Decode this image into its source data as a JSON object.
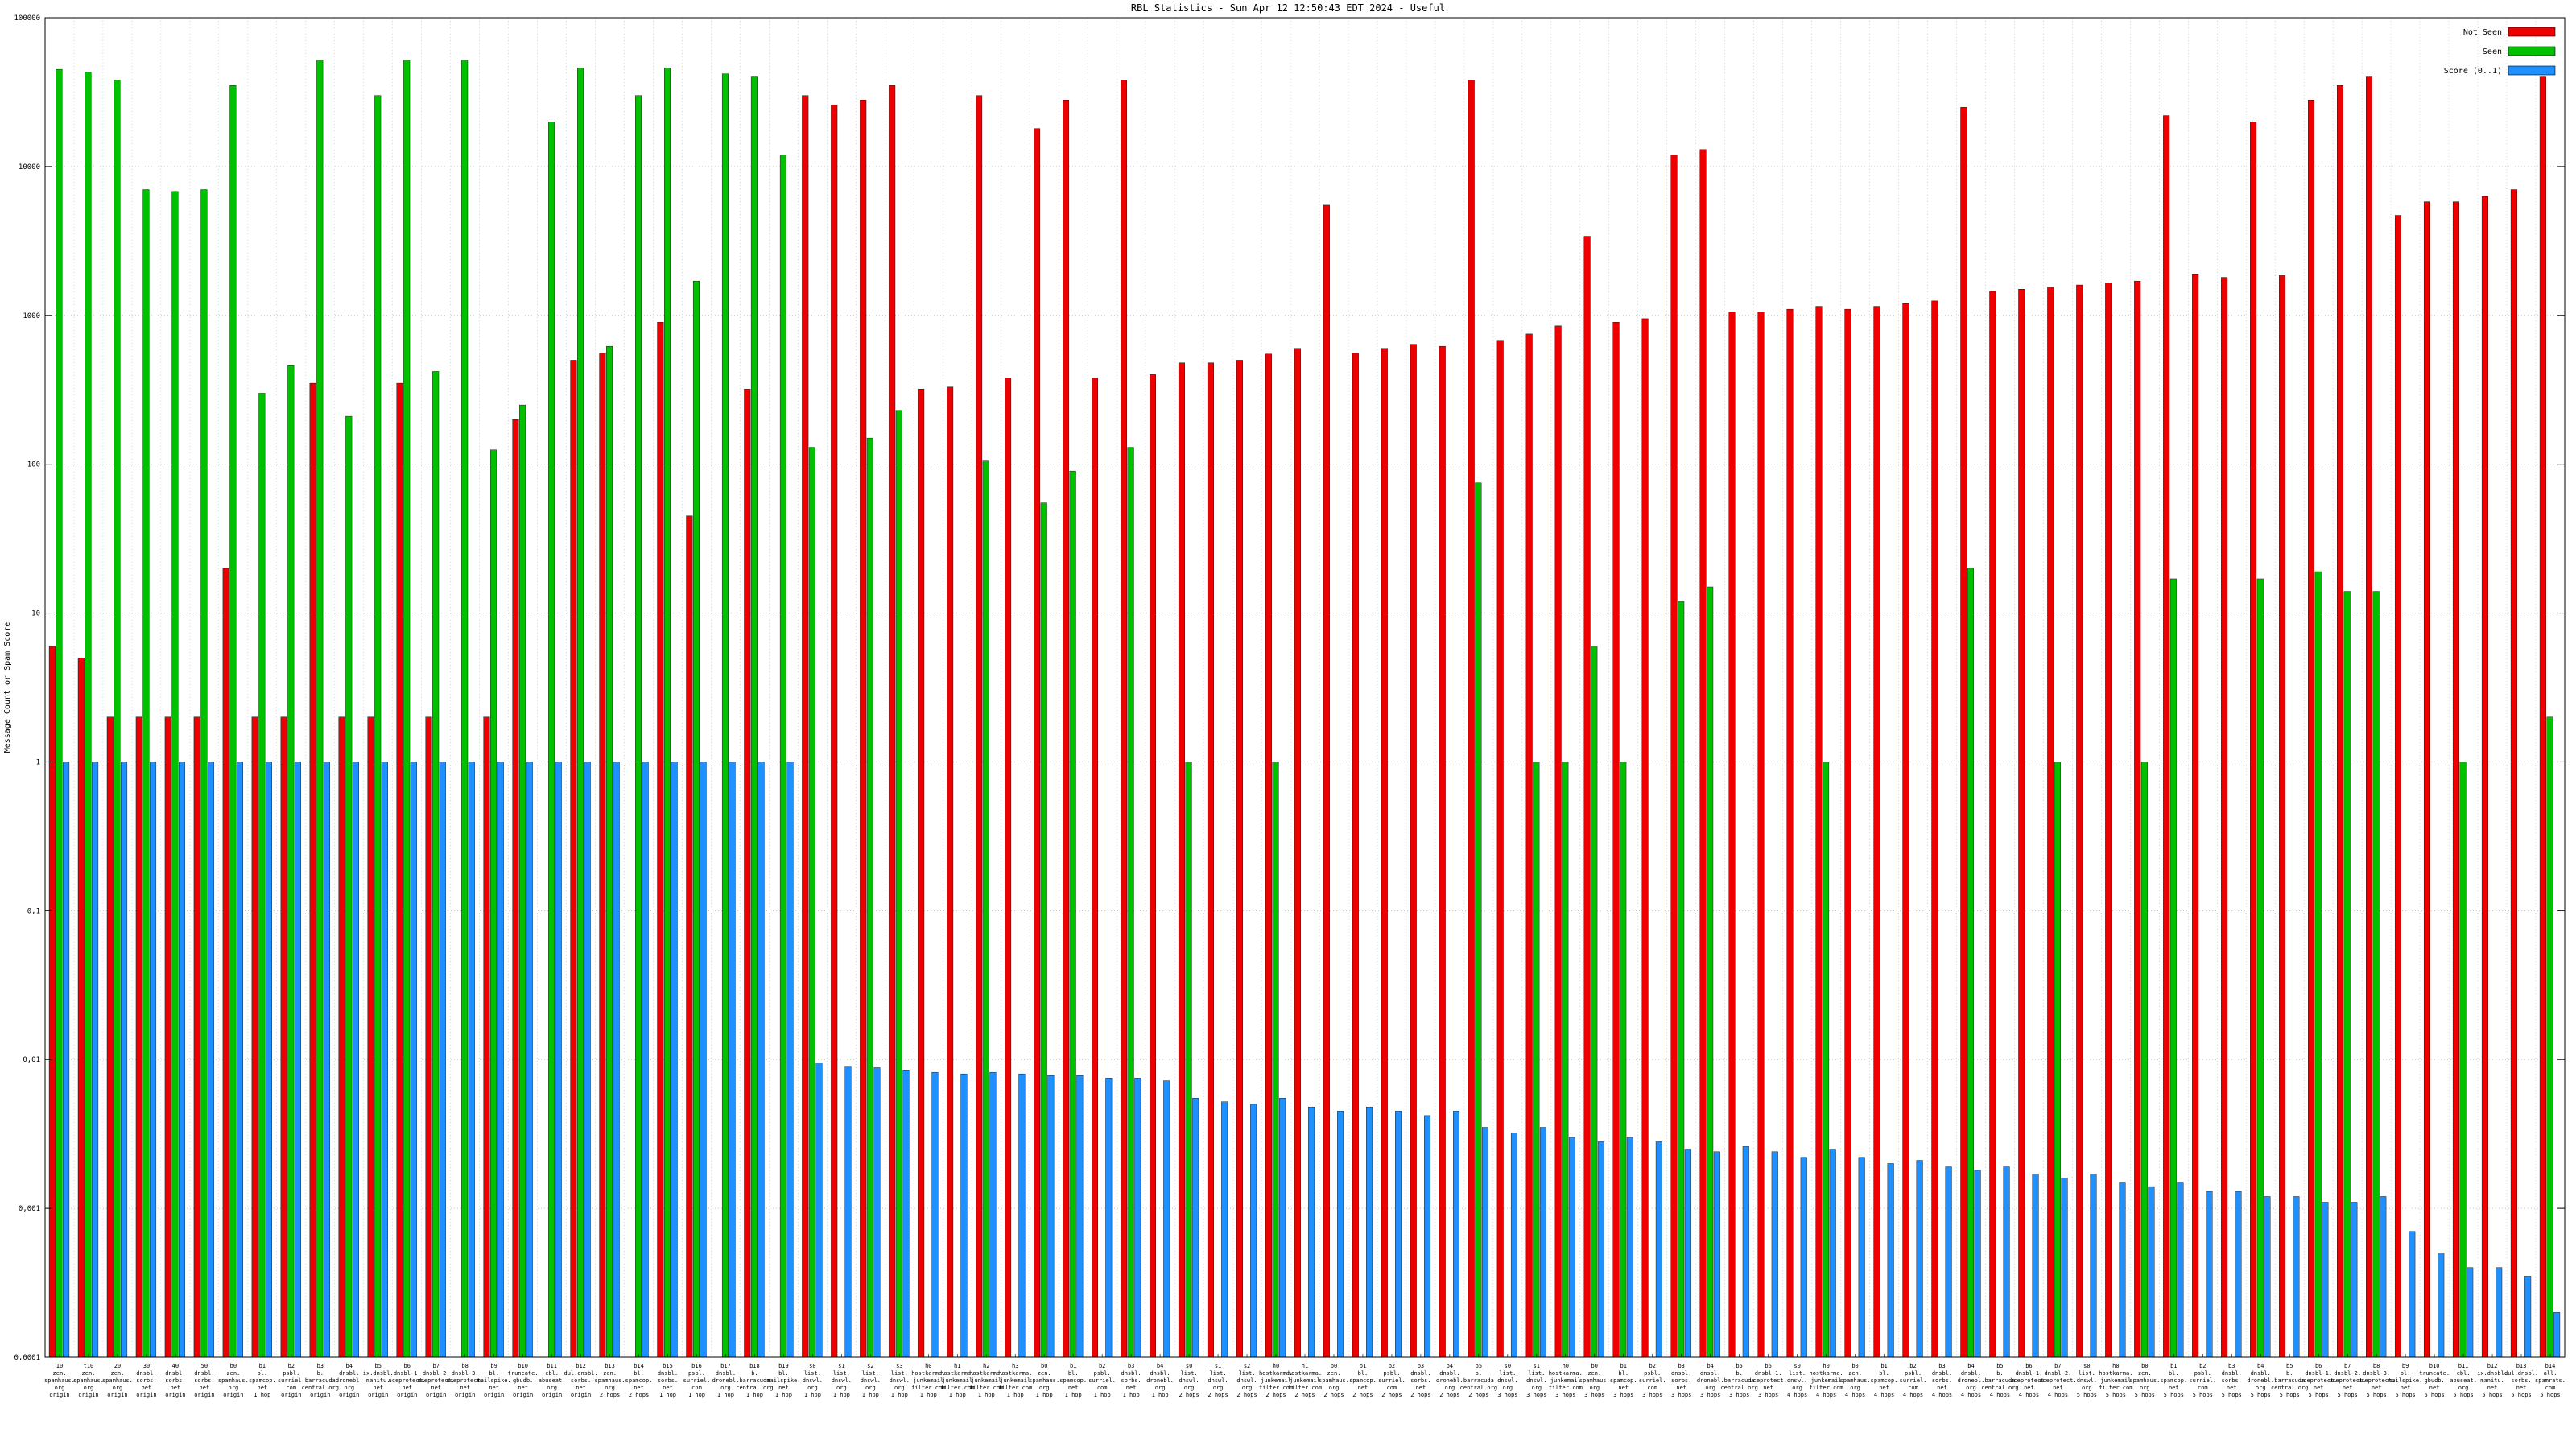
{
  "title": "RBL Statistics - Sun Apr 12 12:50:43 EDT 2024 - Useful",
  "ylabel": "Message Count or Spam Score",
  "yticks": [
    "100000",
    "10000",
    "1000",
    "100",
    "10",
    "1",
    "0,1",
    "0,01",
    "0,001",
    "0,0001"
  ],
  "colors": {
    "not_seen": "#ee0000",
    "seen": "#00c000",
    "score": "#1e90ff",
    "grid": "#a0a0a0",
    "frame": "#000000"
  },
  "legend": [
    {
      "label": "Not Seen",
      "color": "#ee0000"
    },
    {
      "label": "Seen",
      "color": "#00c000"
    },
    {
      "label": "Score (0..1)",
      "color": "#1e90ff"
    }
  ],
  "chart_data": {
    "type": "bar",
    "yscale": "log",
    "ylim": [
      0.0001,
      100000
    ],
    "grid": true,
    "legend_position": "top-right",
    "series_names": [
      "Not Seen",
      "Seen",
      "Score (0..1)"
    ],
    "groups": [
      {
        "label": [
          "10",
          "zen.",
          "spamhaus.",
          "org",
          "origin"
        ],
        "not_seen": 6,
        "seen": 45000,
        "score": 1
      },
      {
        "label": [
          "t10",
          "zen.",
          "spamhaus.",
          "org",
          "origin"
        ],
        "not_seen": 5,
        "seen": 43000,
        "score": 1
      },
      {
        "label": [
          "20",
          "zen.",
          "spamhaus.",
          "org",
          "origin"
        ],
        "not_seen": 2,
        "seen": 38000,
        "score": 1
      },
      {
        "label": [
          "30",
          "dnsbl.",
          "sorbs.",
          "net",
          "origin"
        ],
        "not_seen": 2,
        "seen": 7000,
        "score": 1
      },
      {
        "label": [
          "40",
          "dnsbl.",
          "sorbs.",
          "net",
          "origin"
        ],
        "not_seen": 2,
        "seen": 6800,
        "score": 1
      },
      {
        "label": [
          "50",
          "dnsbl.",
          "sorbs.",
          "net",
          "origin"
        ],
        "not_seen": 2,
        "seen": 7000,
        "score": 1
      },
      {
        "label": [
          "b0",
          "zen.",
          "spamhaus.",
          "org",
          "origin"
        ],
        "not_seen": 20,
        "seen": 35000,
        "score": 1
      },
      {
        "label": [
          "b1",
          "bl.",
          "spamcop.",
          "net",
          "1 hop"
        ],
        "not_seen": 2,
        "seen": 300,
        "score": 1
      },
      {
        "label": [
          "b2",
          "psbl.",
          "surriel.",
          "com",
          "origin"
        ],
        "not_seen": 2,
        "seen": 460,
        "score": 1
      },
      {
        "label": [
          "b3",
          "b.",
          "barracuda",
          "central.org",
          "origin"
        ],
        "not_seen": 350,
        "seen": 52000,
        "score": 1
      },
      {
        "label": [
          "b4",
          "dnsbl.",
          "dronebl.",
          "org",
          "origin"
        ],
        "not_seen": 2,
        "seen": 210,
        "score": 1
      },
      {
        "label": [
          "b5",
          "ix.dnsbl.",
          "manitu.",
          "net",
          "origin"
        ],
        "not_seen": 2,
        "seen": 30000,
        "score": 1
      },
      {
        "label": [
          "b6",
          "dnsbl-1.",
          "uceprotect.",
          "net",
          "origin"
        ],
        "not_seen": 350,
        "seen": 52000,
        "score": 1
      },
      {
        "label": [
          "b7",
          "dnsbl-2.",
          "uceprotect.",
          "net",
          "origin"
        ],
        "not_seen": 2,
        "seen": 420,
        "score": 1
      },
      {
        "label": [
          "b8",
          "dnsbl-3.",
          "uceprotect.",
          "net",
          "origin"
        ],
        "not_seen": 0,
        "seen": 52000,
        "score": 1
      },
      {
        "label": [
          "b9",
          "bl.",
          "mailspike.",
          "net",
          "origin"
        ],
        "not_seen": 2,
        "seen": 125,
        "score": 1
      },
      {
        "label": [
          "b10",
          "truncate.",
          "gbudb.",
          "net",
          "origin"
        ],
        "not_seen": 200,
        "seen": 250,
        "score": 1
      },
      {
        "label": [
          "b11",
          "cbl.",
          "abuseat.",
          "org",
          "origin"
        ],
        "not_seen": 0,
        "seen": 20000,
        "score": 1
      },
      {
        "label": [
          "b12",
          "dul.dnsbl.",
          "sorbs.",
          "net",
          "origin"
        ],
        "not_seen": 500,
        "seen": 46000,
        "score": 1
      },
      {
        "label": [
          "b13",
          "zen.",
          "spamhaus.",
          "org",
          "2 hops"
        ],
        "not_seen": 560,
        "seen": 620,
        "score": 1
      },
      {
        "label": [
          "b14",
          "bl.",
          "spamcop.",
          "net",
          "2 hops"
        ],
        "not_seen": 0,
        "seen": 30000,
        "score": 1
      },
      {
        "label": [
          "b15",
          "dnsbl.",
          "sorbs.",
          "net",
          "1 hop"
        ],
        "not_seen": 900,
        "seen": 46000,
        "score": 1
      },
      {
        "label": [
          "b16",
          "psbl.",
          "surriel.",
          "com",
          "1 hop"
        ],
        "not_seen": 45,
        "seen": 1700,
        "score": 1
      },
      {
        "label": [
          "b17",
          "dnsbl.",
          "dronebl.",
          "org",
          "1 hop"
        ],
        "not_seen": 0,
        "seen": 42000,
        "score": 1
      },
      {
        "label": [
          "b18",
          "b.",
          "barracuda",
          "central.org",
          "1 hop"
        ],
        "not_seen": 320,
        "seen": 40000,
        "score": 1
      },
      {
        "label": [
          "b19",
          "bl.",
          "mailspike.",
          "net",
          "1 hop"
        ],
        "not_seen": 0,
        "seen": 12000,
        "score": 1
      },
      {
        "label": [
          "s0",
          "list.",
          "dnswl.",
          "org",
          "1 hop"
        ],
        "not_seen": 30000,
        "seen": 130,
        "score": 0.0095
      },
      {
        "label": [
          "s1",
          "list.",
          "dnswl.",
          "org",
          "1 hop"
        ],
        "not_seen": 26000,
        "seen": 0,
        "score": 0.009
      },
      {
        "label": [
          "s2",
          "list.",
          "dnswl.",
          "org",
          "1 hop"
        ],
        "not_seen": 28000,
        "seen": 150,
        "score": 0.0088
      },
      {
        "label": [
          "s3",
          "list.",
          "dnswl.",
          "org",
          "1 hop"
        ],
        "not_seen": 35000,
        "seen": 230,
        "score": 0.0085
      },
      {
        "label": [
          "h0",
          "hostkarma.",
          "junkemail",
          "filter.com",
          "1 hop"
        ],
        "not_seen": 320,
        "seen": 0,
        "score": 0.0082
      },
      {
        "label": [
          "h1",
          "hostkarma.",
          "junkemail",
          "filter.com",
          "1 hop"
        ],
        "not_seen": 330,
        "seen": 0,
        "score": 0.008
      },
      {
        "label": [
          "h2",
          "hostkarma.",
          "junkemail",
          "filter.com",
          "1 hop"
        ],
        "not_seen": 30000,
        "seen": 105,
        "score": 0.0082
      },
      {
        "label": [
          "h3",
          "hostkarma.",
          "junkemail",
          "filter.com",
          "1 hop"
        ],
        "not_seen": 380,
        "seen": 0,
        "score": 0.008
      },
      {
        "label": [
          "b0",
          "zen.",
          "spamhaus.",
          "org",
          "1 hop"
        ],
        "not_seen": 18000,
        "seen": 55,
        "score": 0.0078
      },
      {
        "label": [
          "b1",
          "bl.",
          "spamcop.",
          "net",
          "1 hop"
        ],
        "not_seen": 28000,
        "seen": 90,
        "score": 0.0078
      },
      {
        "label": [
          "b2",
          "psbl.",
          "surriel.",
          "com",
          "1 hop"
        ],
        "not_seen": 380,
        "seen": 0,
        "score": 0.0075
      },
      {
        "label": [
          "b3",
          "dnsbl.",
          "sorbs.",
          "net",
          "1 hop"
        ],
        "not_seen": 38000,
        "seen": 130,
        "score": 0.0075
      },
      {
        "label": [
          "b4",
          "dnsbl.",
          "dronebl.",
          "org",
          "1 hop"
        ],
        "not_seen": 400,
        "seen": 0,
        "score": 0.0072
      },
      {
        "label": [
          "s0",
          "list.",
          "dnswl.",
          "org",
          "2 hops"
        ],
        "not_seen": 480,
        "seen": 1,
        "score": 0.0055
      },
      {
        "label": [
          "s1",
          "list.",
          "dnswl.",
          "org",
          "2 hops"
        ],
        "not_seen": 480,
        "seen": 0,
        "score": 0.0052
      },
      {
        "label": [
          "s2",
          "list.",
          "dnswl.",
          "org",
          "2 hops"
        ],
        "not_seen": 500,
        "seen": 0,
        "score": 0.005
      },
      {
        "label": [
          "h0",
          "hostkarma.",
          "junkemail",
          "filter.com",
          "2 hops"
        ],
        "not_seen": 550,
        "seen": 1,
        "score": 0.0055
      },
      {
        "label": [
          "h1",
          "hostkarma.",
          "junkemail",
          "filter.com",
          "2 hops"
        ],
        "not_seen": 600,
        "seen": 0,
        "score": 0.0048
      },
      {
        "label": [
          "b0",
          "zen.",
          "spamhaus.",
          "org",
          "2 hops"
        ],
        "not_seen": 5500,
        "seen": 0,
        "score": 0.0045
      },
      {
        "label": [
          "b1",
          "bl.",
          "spamcop.",
          "net",
          "2 hops"
        ],
        "not_seen": 560,
        "seen": 0,
        "score": 0.0048
      },
      {
        "label": [
          "b2",
          "psbl.",
          "surriel.",
          "com",
          "2 hops"
        ],
        "not_seen": 600,
        "seen": 0,
        "score": 0.0045
      },
      {
        "label": [
          "b3",
          "dnsbl.",
          "sorbs.",
          "net",
          "2 hops"
        ],
        "not_seen": 640,
        "seen": 0,
        "score": 0.0042
      },
      {
        "label": [
          "b4",
          "dnsbl.",
          "dronebl.",
          "org",
          "2 hops"
        ],
        "not_seen": 620,
        "seen": 0,
        "score": 0.0045
      },
      {
        "label": [
          "b5",
          "b.",
          "barracuda",
          "central.org",
          "2 hops"
        ],
        "not_seen": 38000,
        "seen": 75,
        "score": 0.0035
      },
      {
        "label": [
          "s0",
          "list.",
          "dnswl.",
          "org",
          "3 hops"
        ],
        "not_seen": 680,
        "seen": 0,
        "score": 0.0032
      },
      {
        "label": [
          "s1",
          "list.",
          "dnswl.",
          "org",
          "3 hops"
        ],
        "not_seen": 750,
        "seen": 1,
        "score": 0.0035
      },
      {
        "label": [
          "h0",
          "hostkarma.",
          "junkemail",
          "filter.com",
          "3 hops"
        ],
        "not_seen": 850,
        "seen": 1,
        "score": 0.003
      },
      {
        "label": [
          "b0",
          "zen.",
          "spamhaus.",
          "org",
          "3 hops"
        ],
        "not_seen": 3400,
        "seen": 6,
        "score": 0.0028
      },
      {
        "label": [
          "b1",
          "bl.",
          "spamcop.",
          "net",
          "3 hops"
        ],
        "not_seen": 900,
        "seen": 1,
        "score": 0.003
      },
      {
        "label": [
          "b2",
          "psbl.",
          "surriel.",
          "com",
          "3 hops"
        ],
        "not_seen": 950,
        "seen": 0,
        "score": 0.0028
      },
      {
        "label": [
          "b3",
          "dnsbl.",
          "sorbs.",
          "net",
          "3 hops"
        ],
        "not_seen": 12000,
        "seen": 12,
        "score": 0.0025
      },
      {
        "label": [
          "b4",
          "dnsbl.",
          "dronebl.",
          "org",
          "3 hops"
        ],
        "not_seen": 13000,
        "seen": 15,
        "score": 0.0024
      },
      {
        "label": [
          "b5",
          "b.",
          "barracuda",
          "central.org",
          "3 hops"
        ],
        "not_seen": 1050,
        "seen": 0,
        "score": 0.0026
      },
      {
        "label": [
          "b6",
          "dnsbl-1.",
          "uceprotect.",
          "net",
          "3 hops"
        ],
        "not_seen": 1050,
        "seen": 0,
        "score": 0.0024
      },
      {
        "label": [
          "s0",
          "list.",
          "dnswl.",
          "org",
          "4 hops"
        ],
        "not_seen": 1100,
        "seen": 0,
        "score": 0.0022
      },
      {
        "label": [
          "h0",
          "hostkarma.",
          "junkemail",
          "filter.com",
          "4 hops"
        ],
        "not_seen": 1150,
        "seen": 1,
        "score": 0.0025
      },
      {
        "label": [
          "b0",
          "zen.",
          "spamhaus.",
          "org",
          "4 hops"
        ],
        "not_seen": 1100,
        "seen": 0,
        "score": 0.0022
      },
      {
        "label": [
          "b1",
          "bl.",
          "spamcop.",
          "net",
          "4 hops"
        ],
        "not_seen": 1150,
        "seen": 0,
        "score": 0.002
      },
      {
        "label": [
          "b2",
          "psbl.",
          "surriel.",
          "com",
          "4 hops"
        ],
        "not_seen": 1200,
        "seen": 0,
        "score": 0.0021
      },
      {
        "label": [
          "b3",
          "dnsbl.",
          "sorbs.",
          "net",
          "4 hops"
        ],
        "not_seen": 1250,
        "seen": 0,
        "score": 0.0019
      },
      {
        "label": [
          "b4",
          "dnsbl.",
          "dronebl.",
          "org",
          "4 hops"
        ],
        "not_seen": 25000,
        "seen": 20,
        "score": 0.0018
      },
      {
        "label": [
          "b5",
          "b.",
          "barracuda",
          "central.org",
          "4 hops"
        ],
        "not_seen": 1450,
        "seen": 0,
        "score": 0.0019
      },
      {
        "label": [
          "b6",
          "dnsbl-1.",
          "uceprotect.",
          "net",
          "4 hops"
        ],
        "not_seen": 1500,
        "seen": 0,
        "score": 0.0017
      },
      {
        "label": [
          "b7",
          "dnsbl-2.",
          "uceprotect.",
          "net",
          "4 hops"
        ],
        "not_seen": 1550,
        "seen": 1,
        "score": 0.0016
      },
      {
        "label": [
          "s0",
          "list.",
          "dnswl.",
          "org",
          "5 hops"
        ],
        "not_seen": 1600,
        "seen": 0,
        "score": 0.0017
      },
      {
        "label": [
          "h0",
          "hostkarma.",
          "junkemail",
          "filter.com",
          "5 hops"
        ],
        "not_seen": 1650,
        "seen": 0,
        "score": 0.0015
      },
      {
        "label": [
          "b0",
          "zen.",
          "spamhaus.",
          "org",
          "5 hops"
        ],
        "not_seen": 1700,
        "seen": 1,
        "score": 0.0014
      },
      {
        "label": [
          "b1",
          "bl.",
          "spamcop.",
          "net",
          "5 hops"
        ],
        "not_seen": 22000,
        "seen": 17,
        "score": 0.0015
      },
      {
        "label": [
          "b2",
          "psbl.",
          "surriel.",
          "com",
          "5 hops"
        ],
        "not_seen": 1900,
        "seen": 0,
        "score": 0.0013
      },
      {
        "label": [
          "b3",
          "dnsbl.",
          "sorbs.",
          "net",
          "5 hops"
        ],
        "not_seen": 1800,
        "seen": 0,
        "score": 0.0013
      },
      {
        "label": [
          "b4",
          "dnsbl.",
          "dronebl.",
          "org",
          "5 hops"
        ],
        "not_seen": 20000,
        "seen": 17,
        "score": 0.0012
      },
      {
        "label": [
          "b5",
          "b.",
          "barracuda",
          "central.org",
          "5 hops"
        ],
        "not_seen": 1850,
        "seen": 0,
        "score": 0.0012
      },
      {
        "label": [
          "b6",
          "dnsbl-1.",
          "uceprotect.",
          "net",
          "5 hops"
        ],
        "not_seen": 28000,
        "seen": 19,
        "score": 0.0011
      },
      {
        "label": [
          "b7",
          "dnsbl-2.",
          "uceprotect.",
          "net",
          "5 hops"
        ],
        "not_seen": 35000,
        "seen": 14,
        "score": 0.0011
      },
      {
        "label": [
          "b8",
          "dnsbl-3.",
          "uceprotect.",
          "net",
          "5 hops"
        ],
        "not_seen": 40000,
        "seen": 14,
        "score": 0.0012
      },
      {
        "label": [
          "b9",
          "bl.",
          "mailspike.",
          "net",
          "5 hops"
        ],
        "not_seen": 4700,
        "seen": 0,
        "score": 0.0007
      },
      {
        "label": [
          "b10",
          "truncate.",
          "gbudb.",
          "net",
          "5 hops"
        ],
        "not_seen": 5800,
        "seen": 0,
        "score": 0.0005
      },
      {
        "label": [
          "b11",
          "cbl.",
          "abuseat.",
          "org",
          "5 hops"
        ],
        "not_seen": 5800,
        "seen": 1,
        "score": 0.0004
      },
      {
        "label": [
          "b12",
          "ix.dnsbl.",
          "manitu.",
          "net",
          "5 hops"
        ],
        "not_seen": 6300,
        "seen": 0,
        "score": 0.0004
      },
      {
        "label": [
          "b13",
          "dul.dnsbl.",
          "sorbs.",
          "net",
          "5 hops"
        ],
        "not_seen": 7000,
        "seen": 0,
        "score": 0.00035
      },
      {
        "label": [
          "b14",
          "all.",
          "spamrats.",
          "com",
          "5 hops"
        ],
        "not_seen": 40000,
        "seen": 2,
        "score": 0.0002
      }
    ]
  }
}
